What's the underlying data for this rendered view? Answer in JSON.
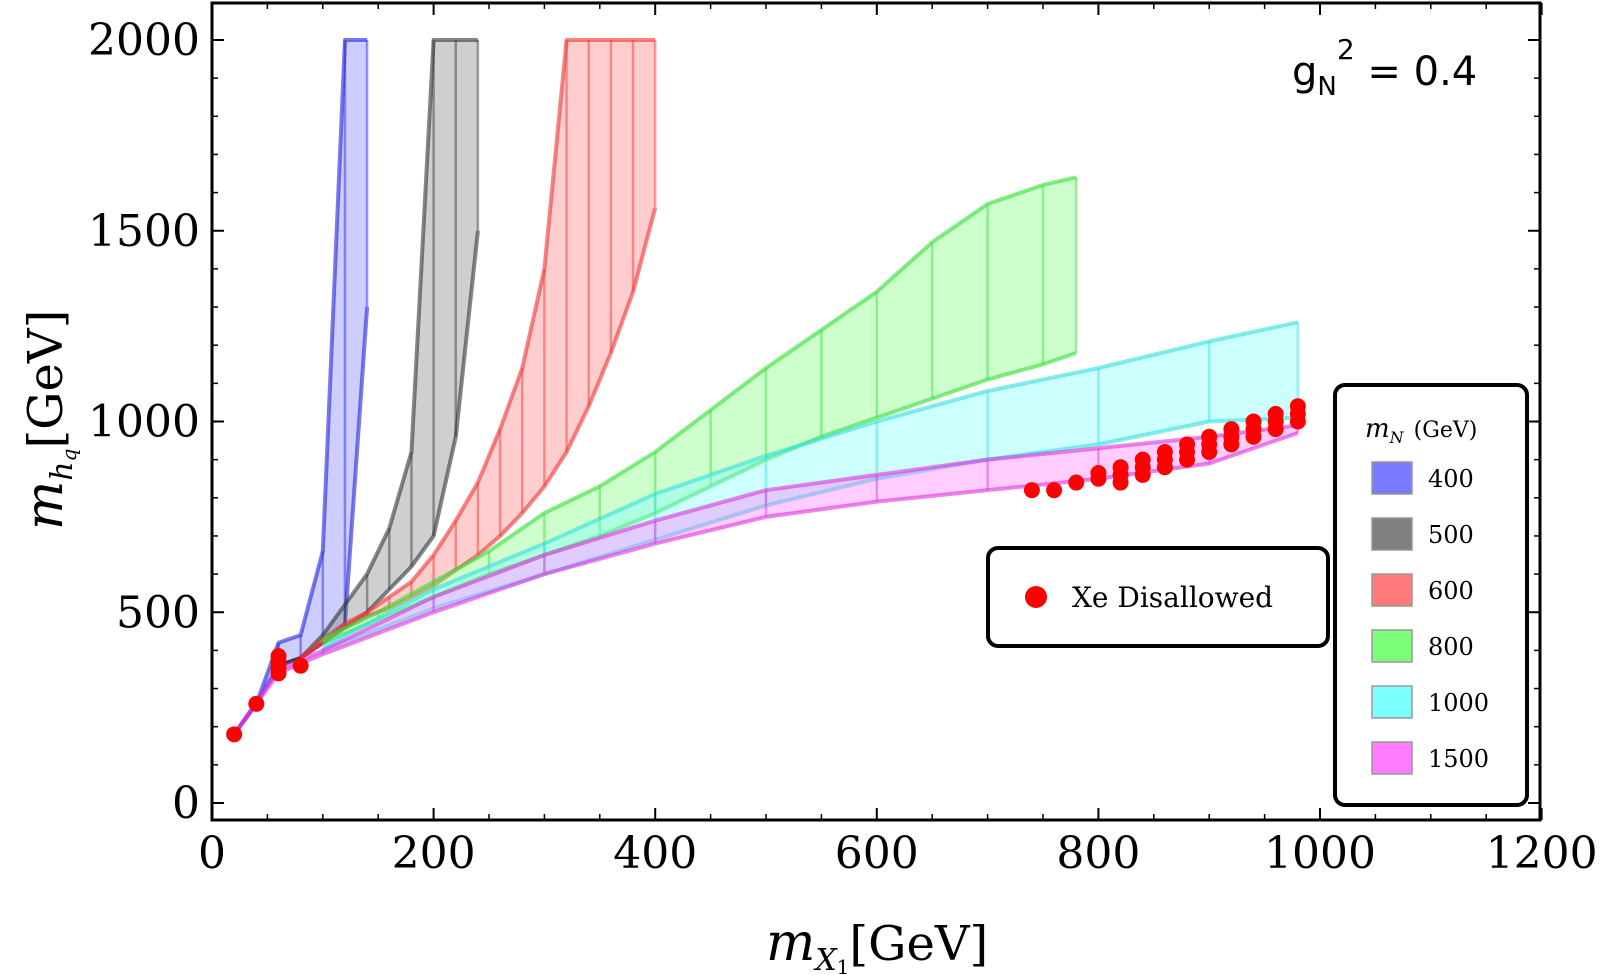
{
  "chart_data": {
    "type": "area",
    "annotation": {
      "base": "g",
      "sub": "N",
      "sup": "2",
      "rest": " = 0.4"
    },
    "xlabel": {
      "italic": "m",
      "sub": "X",
      "subsub": "1",
      "unit": "[GeV]"
    },
    "ylabel": {
      "italic": "m",
      "sub": "h",
      "subsub": "q",
      "unit": "[GeV]"
    },
    "xlim": [
      0,
      1200
    ],
    "ylim": [
      0,
      2000
    ],
    "xticks": [
      0,
      200,
      400,
      600,
      800,
      1000,
      1200
    ],
    "yticks": [
      0,
      500,
      1000,
      1500,
      2000
    ],
    "legend_title": {
      "italic": "m",
      "sub": "N",
      "unit": "(GeV)"
    },
    "series": [
      {
        "name": "400",
        "color": "#7b7bff",
        "line": "#2222dd",
        "x": [
          20,
          40,
          60,
          80,
          100,
          120,
          140
        ],
        "lower": [
          180,
          260,
          360,
          380,
          420,
          470,
          1300
        ],
        "upper": [
          180,
          260,
          420,
          440,
          660,
          2000,
          2000
        ]
      },
      {
        "name": "500",
        "color": "#808080",
        "line": "#333333",
        "x": [
          60,
          80,
          100,
          120,
          140,
          160,
          180,
          200,
          220,
          240
        ],
        "lower": [
          360,
          380,
          420,
          460,
          500,
          560,
          620,
          700,
          960,
          1500
        ],
        "upper": [
          360,
          380,
          440,
          520,
          600,
          720,
          920,
          2000,
          2000,
          2000
        ]
      },
      {
        "name": "600",
        "color": "#ff7b7b",
        "line": "#ee3333",
        "x": [
          80,
          100,
          120,
          140,
          160,
          180,
          200,
          220,
          240,
          260,
          280,
          300,
          320,
          340,
          360,
          380,
          400
        ],
        "lower": [
          380,
          420,
          460,
          490,
          510,
          540,
          570,
          610,
          650,
          700,
          760,
          830,
          920,
          1040,
          1180,
          1340,
          1560
        ],
        "upper": [
          380,
          430,
          470,
          500,
          540,
          580,
          650,
          740,
          840,
          980,
          1140,
          1400,
          2000,
          2000,
          2000,
          2000,
          2000
        ]
      },
      {
        "name": "800",
        "color": "#7bff7b",
        "line": "#33dd33",
        "x": [
          100,
          150,
          200,
          250,
          300,
          350,
          400,
          450,
          500,
          550,
          600,
          650,
          700,
          750,
          780
        ],
        "lower": [
          420,
          480,
          540,
          600,
          650,
          700,
          760,
          830,
          900,
          960,
          1010,
          1060,
          1110,
          1150,
          1180
        ],
        "upper": [
          430,
          500,
          580,
          660,
          760,
          830,
          920,
          1030,
          1140,
          1240,
          1340,
          1470,
          1570,
          1620,
          1640
        ]
      },
      {
        "name": "1000",
        "color": "#7bffff",
        "line": "#33dddd",
        "x": [
          100,
          200,
          300,
          400,
          500,
          600,
          700,
          800,
          900,
          980
        ],
        "lower": [
          400,
          510,
          600,
          690,
          780,
          850,
          900,
          940,
          1000,
          1010
        ],
        "upper": [
          410,
          560,
          680,
          810,
          910,
          1000,
          1080,
          1140,
          1210,
          1260
        ]
      },
      {
        "name": "1500",
        "color": "#ff7bff",
        "line": "#dd33dd",
        "x": [
          20,
          60,
          100,
          200,
          300,
          400,
          500,
          600,
          700,
          800,
          900,
          980
        ],
        "lower": [
          180,
          340,
          390,
          500,
          600,
          680,
          750,
          790,
          820,
          850,
          890,
          970
        ],
        "upper": [
          180,
          350,
          400,
          540,
          650,
          740,
          820,
          860,
          900,
          930,
          960,
          990
        ]
      }
    ],
    "xe_label": "Xe Disallowed",
    "xe_points": [
      [
        20,
        180
      ],
      [
        40,
        260
      ],
      [
        60,
        340
      ],
      [
        60,
        355
      ],
      [
        60,
        370
      ],
      [
        60,
        385
      ],
      [
        80,
        360
      ],
      [
        740,
        820
      ],
      [
        760,
        820
      ],
      [
        780,
        840
      ],
      [
        800,
        850
      ],
      [
        800,
        865
      ],
      [
        820,
        840
      ],
      [
        820,
        860
      ],
      [
        820,
        880
      ],
      [
        840,
        860
      ],
      [
        840,
        880
      ],
      [
        840,
        900
      ],
      [
        860,
        880
      ],
      [
        860,
        900
      ],
      [
        860,
        920
      ],
      [
        880,
        900
      ],
      [
        880,
        920
      ],
      [
        880,
        940
      ],
      [
        900,
        920
      ],
      [
        900,
        940
      ],
      [
        900,
        960
      ],
      [
        920,
        940
      ],
      [
        920,
        960
      ],
      [
        920,
        980
      ],
      [
        940,
        960
      ],
      [
        940,
        980
      ],
      [
        940,
        1000
      ],
      [
        960,
        980
      ],
      [
        960,
        1000
      ],
      [
        960,
        1020
      ],
      [
        980,
        1000
      ],
      [
        980,
        1020
      ],
      [
        980,
        1040
      ]
    ]
  }
}
